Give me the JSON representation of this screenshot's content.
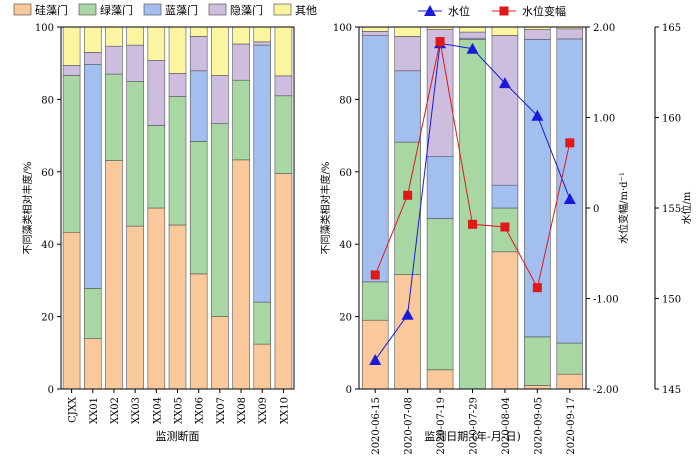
{
  "chart_data": [
    {
      "type": "bar",
      "stacked": true,
      "title": "",
      "xlabel": "监测断面",
      "ylabel": "不同藻类相对丰度/%",
      "ylim": [
        0,
        100
      ],
      "yticks": [
        0,
        20,
        40,
        60,
        80,
        100
      ],
      "categories": [
        "CJXX",
        "XX01",
        "XX02",
        "XX03",
        "XX04",
        "XX05",
        "XX06",
        "XX07",
        "XX08",
        "XX09",
        "XX10"
      ],
      "legend_position": "top",
      "series": [
        {
          "name": "硅藻门",
          "color": "#F9C89B",
          "values": [
            43.3,
            13.9,
            63.1,
            45.0,
            50.0,
            45.3,
            31.8,
            20.0,
            63.3,
            12.4,
            59.5
          ]
        },
        {
          "name": "绿藻门",
          "color": "#A8D7A4",
          "values": [
            43.3,
            13.9,
            23.9,
            40.0,
            22.8,
            35.5,
            36.6,
            53.3,
            22.0,
            11.6,
            21.5
          ]
        },
        {
          "name": "蓝藻门",
          "color": "#A3BFF0",
          "values": [
            0.0,
            61.9,
            0.0,
            0.0,
            0.0,
            0.0,
            19.5,
            0.0,
            0.0,
            71.0,
            0.0
          ]
        },
        {
          "name": "隐藻门",
          "color": "#CDBDDF",
          "values": [
            2.8,
            3.3,
            7.7,
            10.0,
            18.0,
            6.4,
            9.5,
            13.3,
            10.0,
            0.9,
            5.5
          ]
        },
        {
          "name": "其他",
          "color": "#FBF4A0",
          "values": [
            10.6,
            7.0,
            5.3,
            5.0,
            9.2,
            12.8,
            2.6,
            13.4,
            4.7,
            4.1,
            13.5
          ]
        }
      ]
    },
    {
      "type": "bar",
      "stacked": true,
      "title": "",
      "xlabel": "监测日期 (年-月-日)",
      "ylabel": "不同藻类相对丰度/%",
      "ylim": [
        0,
        100
      ],
      "yticks": [
        0,
        20,
        40,
        60,
        80,
        100
      ],
      "categories": [
        "2020-06-15",
        "2020-07-08",
        "2020-07-19",
        "2020-07-29",
        "2020-08-04",
        "2020-09-05",
        "2020-09-17"
      ],
      "legend_position": "top",
      "series": [
        {
          "name": "硅藻门",
          "color": "#F9C89B",
          "values": [
            19.0,
            31.6,
            5.3,
            0.0,
            37.9,
            1.0,
            4.1
          ]
        },
        {
          "name": "绿藻门",
          "color": "#A8D7A4",
          "values": [
            10.6,
            36.6,
            41.8,
            96.6,
            12.1,
            13.4,
            8.6
          ]
        },
        {
          "name": "蓝藻门",
          "color": "#A3BFF0",
          "values": [
            68.0,
            19.7,
            17.1,
            0.3,
            6.3,
            82.2,
            84.0
          ]
        },
        {
          "name": "隐藻门",
          "color": "#CDBDDF",
          "values": [
            1.2,
            9.5,
            35.1,
            1.7,
            41.4,
            2.7,
            2.8
          ]
        },
        {
          "name": "其他",
          "color": "#FBF4A0",
          "values": [
            1.2,
            2.6,
            0.7,
            1.4,
            2.3,
            0.7,
            0.5
          ]
        }
      ],
      "lines": [
        {
          "name": "水位",
          "axis": "y3",
          "color": "#1A1ADE",
          "marker": "triangle",
          "values": [
            146.6,
            149.1,
            164.1,
            163.8,
            161.9,
            160.1,
            155.5
          ]
        },
        {
          "name": "水位变幅",
          "axis": "y2",
          "color": "#E01818",
          "marker": "square",
          "values": [
            -0.74,
            0.14,
            1.84,
            -0.18,
            -0.21,
            -0.88,
            0.72
          ]
        }
      ],
      "y2": {
        "label": "水位变幅/m·d⁻¹",
        "lim": [
          -2,
          2
        ],
        "ticks": [
          -2,
          -1,
          0,
          1,
          2
        ],
        "ticklabels": [
          "-2.00",
          "-1.00",
          "0",
          "1.00",
          "2.00"
        ]
      },
      "y3": {
        "label": "水位/m",
        "lim": [
          145,
          165
        ],
        "ticks": [
          145,
          150,
          155,
          160,
          165
        ],
        "ticklabels": [
          "145",
          "150",
          "155",
          "160",
          "165"
        ]
      }
    }
  ]
}
